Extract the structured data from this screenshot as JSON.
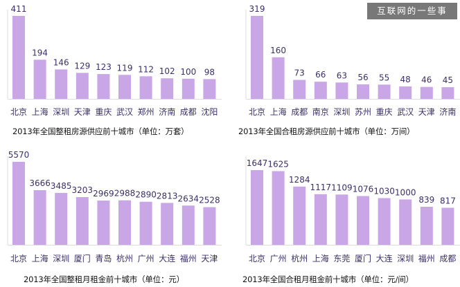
{
  "watermark": "互联网的一些事",
  "colors": {
    "bar": "#c9a6e6",
    "label": "#3b2f66",
    "axis": "#dcdcdc"
  },
  "chart_data": [
    {
      "type": "bar",
      "title": "2013年全国整租房源供应前十城市（单位：万套）",
      "categories": [
        "北京",
        "上海",
        "深圳",
        "天津",
        "重庆",
        "武汉",
        "郑州",
        "济南",
        "成都",
        "沈阳"
      ],
      "values": [
        411,
        194,
        146,
        129,
        123,
        119,
        112,
        102,
        100,
        98
      ],
      "value_labels": [
        "411",
        "194",
        "146",
        "129",
        "123",
        "119",
        "112",
        "102",
        "100",
        "98"
      ],
      "ylim": [
        0,
        411
      ]
    },
    {
      "type": "bar",
      "title": "2013年全国合租房源供应前十城市（单位：万间）",
      "categories": [
        "北京",
        "上海",
        "成都",
        "南京",
        "深圳",
        "苏州",
        "重庆",
        "武汉",
        "天津",
        "济南"
      ],
      "values": [
        319,
        160,
        73,
        66,
        63,
        56,
        55,
        48,
        46,
        45
      ],
      "value_labels": [
        "319",
        "160",
        "73",
        "66",
        "63",
        "56",
        "55",
        "48",
        "46",
        "45"
      ],
      "ylim": [
        0,
        319
      ]
    },
    {
      "type": "bar",
      "title": "2013年全国整租月租金前十城市（单位：元）",
      "categories": [
        "北京",
        "上海",
        "深圳",
        "厦门",
        "青岛",
        "杭州",
        "广州",
        "大连",
        "福州",
        "天津"
      ],
      "values": [
        5570,
        3666,
        3485,
        3203,
        2969,
        2988,
        2890,
        2813,
        2634,
        2528
      ],
      "value_labels": [
        "5570",
        "3666",
        "3485",
        "3203",
        "2969",
        "2988",
        "2890",
        "2813",
        "2634",
        "2528"
      ],
      "ylim": [
        0,
        5570
      ]
    },
    {
      "type": "bar",
      "title": "2013年全国合租月租金前十城市（单位：元/间）",
      "categories": [
        "北京",
        "广州",
        "杭州",
        "上海",
        "东莞",
        "厦门",
        "大连",
        "深圳",
        "福州",
        "成都"
      ],
      "values": [
        1647,
        1625,
        1284,
        1117,
        1109,
        1076,
        1030,
        1000,
        839,
        817
      ],
      "value_labels": [
        "1647",
        "1625",
        "1284",
        "1117",
        "1109",
        "1076",
        "1030",
        "1000",
        "839",
        "817"
      ],
      "ylim": [
        0,
        1647
      ]
    }
  ]
}
